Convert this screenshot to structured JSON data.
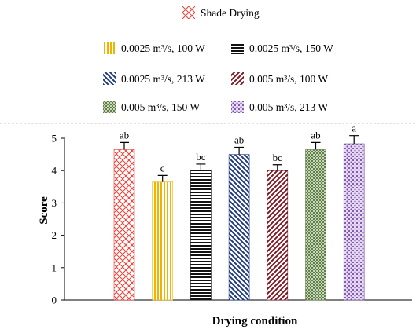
{
  "chart_data": {
    "type": "bar",
    "xlabel": "Drying condition",
    "ylabel": "Score",
    "ylim": [
      0,
      5
    ],
    "yticks": [
      0,
      1,
      2,
      3,
      4,
      5
    ],
    "grid": false,
    "legend_position": "top",
    "series": [
      {
        "name": "Shade Drying",
        "value": 4.65,
        "error": 0.22,
        "letter": "ab",
        "pattern": "crosshatch",
        "color": "#e8463c"
      },
      {
        "name": "0.0025 m³/s, 100 W",
        "value": 3.65,
        "error": 0.2,
        "letter": "c",
        "pattern": "vertical",
        "color": "#f0b400"
      },
      {
        "name": "0.0025 m³/s, 150 W",
        "value": 4.0,
        "error": 0.2,
        "letter": "bc",
        "pattern": "horizontal",
        "color": "#111111"
      },
      {
        "name": "0.0025 m³/s, 213 W",
        "value": 4.5,
        "error": 0.22,
        "letter": "ab",
        "pattern": "diag-left",
        "color": "#1f3a7a"
      },
      {
        "name": "0.005 m³/s, 100 W",
        "value": 4.0,
        "error": 0.18,
        "letter": "bc",
        "pattern": "diag-right",
        "color": "#7a1a22"
      },
      {
        "name": "0.005 m³/s, 150 W",
        "value": 4.65,
        "error": 0.22,
        "letter": "ab",
        "pattern": "checker",
        "color": "#5f7f4a"
      },
      {
        "name": "0.005 m³/s, 213 W",
        "value": 4.83,
        "error": 0.25,
        "letter": "a",
        "pattern": "dots",
        "color": "#7b4fa8"
      }
    ]
  }
}
